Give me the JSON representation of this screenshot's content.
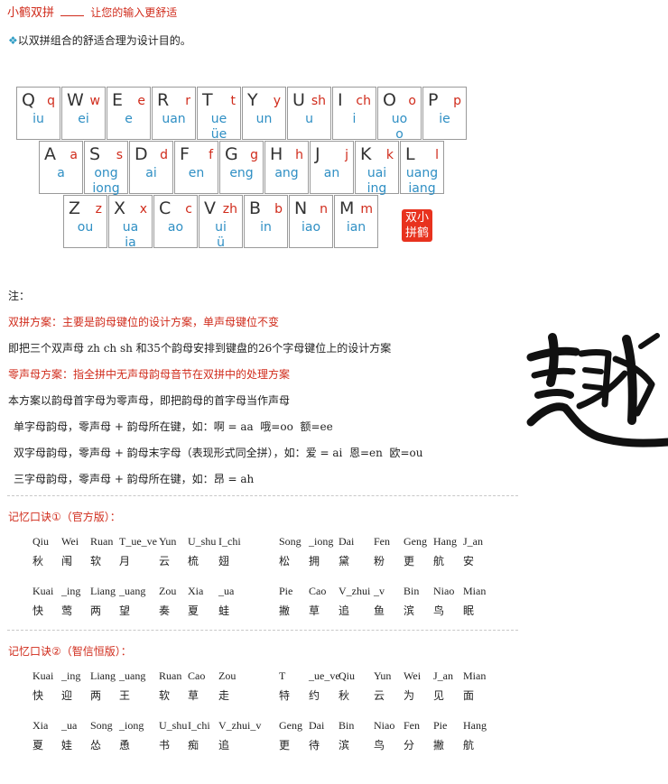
{
  "header": {
    "brand": "小鹤双拼",
    "subtitle": "让您的输入更舒适",
    "desc_marker": "❖",
    "desc": "以双拼组合的舒适合理为设计目的。"
  },
  "keyboard": {
    "rows": [
      [
        {
          "letter": "Q",
          "sheng": "q",
          "finals": [
            "iu"
          ]
        },
        {
          "letter": "W",
          "sheng": "w",
          "finals": [
            "ei"
          ]
        },
        {
          "letter": "E",
          "sheng": "e",
          "finals": [
            "e"
          ]
        },
        {
          "letter": "R",
          "sheng": "r",
          "finals": [
            "uan"
          ]
        },
        {
          "letter": "T",
          "sheng": "t",
          "finals": [
            "ue",
            "üe"
          ]
        },
        {
          "letter": "Y",
          "sheng": "y",
          "finals": [
            "un"
          ]
        },
        {
          "letter": "U",
          "sheng": "sh",
          "finals": [
            "u"
          ]
        },
        {
          "letter": "I",
          "sheng": "ch",
          "finals": [
            "i"
          ]
        },
        {
          "letter": "O",
          "sheng": "o",
          "finals": [
            "uo",
            "o"
          ]
        },
        {
          "letter": "P",
          "sheng": "p",
          "finals": [
            "ie"
          ]
        }
      ],
      [
        {
          "letter": "A",
          "sheng": "a",
          "finals": [
            "a"
          ]
        },
        {
          "letter": "S",
          "sheng": "s",
          "finals": [
            "ong",
            "iong"
          ]
        },
        {
          "letter": "D",
          "sheng": "d",
          "finals": [
            "ai"
          ]
        },
        {
          "letter": "F",
          "sheng": "f",
          "finals": [
            "en"
          ]
        },
        {
          "letter": "G",
          "sheng": "g",
          "finals": [
            "eng"
          ]
        },
        {
          "letter": "H",
          "sheng": "h",
          "finals": [
            "ang"
          ]
        },
        {
          "letter": "J",
          "sheng": "j",
          "finals": [
            "an"
          ]
        },
        {
          "letter": "K",
          "sheng": "k",
          "finals": [
            "uai",
            "ing"
          ]
        },
        {
          "letter": "L",
          "sheng": "l",
          "finals": [
            "uang",
            "iang"
          ]
        }
      ],
      [
        {
          "letter": "Z",
          "sheng": "z",
          "finals": [
            "ou"
          ]
        },
        {
          "letter": "X",
          "sheng": "x",
          "finals": [
            "ua",
            "ia"
          ]
        },
        {
          "letter": "C",
          "sheng": "c",
          "finals": [
            "ao"
          ]
        },
        {
          "letter": "V",
          "sheng": "zh",
          "finals": [
            "ui",
            "ü"
          ]
        },
        {
          "letter": "B",
          "sheng": "b",
          "finals": [
            "in"
          ]
        },
        {
          "letter": "N",
          "sheng": "n",
          "finals": [
            "iao"
          ]
        },
        {
          "letter": "M",
          "sheng": "m",
          "finals": [
            "ian"
          ]
        }
      ]
    ],
    "seal_text": "双小拼鹤"
  },
  "notes": {
    "heading": "注：",
    "shuangpin_def": "双拼方案：主要是韵母键位的设计方案，单声母键位不变",
    "scheme_line": {
      "pre": "即把三个双声母 ",
      "shengmu": "zh ch sh",
      "mid1": " 和",
      "count35": "35",
      "mid2": "个韵母安排到键盘的",
      "count26": "26",
      "post": "个字母键位上的设计方案"
    },
    "zero_def": "零声母方案：指全拼中无声母韵母音节在双拼中的处理方案",
    "zero_rule": "本方案以韵母首字母为零声母，即把韵母的首字母当作声母",
    "rule1": {
      "text": "单字母韵母，零声母 + 韵母所在键，如：",
      "examples": "啊 = aa  哦=oo  额=ee"
    },
    "rule2": {
      "text": "双字母韵母，零声母 + 韵母末字母（表现形式同全拼），如：",
      "examples": "爱 = ai  恩=en  欧=ou"
    },
    "rule3": {
      "text": "三字母韵母，零声母 + 韵母所在键，如：",
      "examples": "昂 = ah"
    },
    "calligraphy": "趣"
  },
  "mnemonic1": {
    "heading": "记忆口诀①（官方版）：",
    "groups": [
      [
        {
          "py": "Qiu",
          "hz": "秋"
        },
        {
          "py": "Wei",
          "hz": "闱"
        },
        {
          "py": "Ruan",
          "hz": "软"
        },
        {
          "py": "T_ue_ve",
          "hz": "月"
        },
        {
          "py": "Yun",
          "hz": "云"
        },
        {
          "py": "U_shu",
          "hz": "梳"
        },
        {
          "py": "I_chi",
          "hz": "翅"
        },
        {
          "py": "Song",
          "hz": "松"
        },
        {
          "py": "_iong",
          "hz": "拥"
        },
        {
          "py": "Dai",
          "hz": "黛"
        },
        {
          "py": "Fen",
          "hz": "粉"
        },
        {
          "py": "Geng",
          "hz": "更"
        },
        {
          "py": "Hang",
          "hz": "航"
        },
        {
          "py": "J_an",
          "hz": "安"
        }
      ],
      [
        {
          "py": "Kuai",
          "hz": "快"
        },
        {
          "py": "_ing",
          "hz": "莺"
        },
        {
          "py": "Liang",
          "hz": "两"
        },
        {
          "py": "_uang",
          "hz": "望"
        },
        {
          "py": "Zou",
          "hz": "奏"
        },
        {
          "py": "Xia",
          "hz": "夏"
        },
        {
          "py": "_ua",
          "hz": "蛙"
        },
        {
          "py": "Pie",
          "hz": "撇"
        },
        {
          "py": "Cao",
          "hz": "草"
        },
        {
          "py": "V_zhui",
          "hz": "追"
        },
        {
          "py": "_v",
          "hz": "鱼"
        },
        {
          "py": "Bin",
          "hz": "滨"
        },
        {
          "py": "Niao",
          "hz": "鸟"
        },
        {
          "py": "Mian",
          "hz": "眠"
        }
      ]
    ]
  },
  "mnemonic2": {
    "heading": "记忆口诀②（智信恒版）：",
    "groups": [
      [
        {
          "py": "Kuai",
          "hz": "快"
        },
        {
          "py": "_ing",
          "hz": "迎"
        },
        {
          "py": "Liang",
          "hz": "两"
        },
        {
          "py": "_uang",
          "hz": "王"
        },
        {
          "py": "Ruan",
          "hz": "软"
        },
        {
          "py": "Cao",
          "hz": "草"
        },
        {
          "py": "Zou",
          "hz": "走"
        },
        {
          "py": "T",
          "hz": "特"
        },
        {
          "py": "_ue_ve",
          "hz": "约"
        },
        {
          "py": "Qiu",
          "hz": "秋"
        },
        {
          "py": "Yun",
          "hz": "云"
        },
        {
          "py": "Wei",
          "hz": "为"
        },
        {
          "py": "J_an",
          "hz": "见"
        },
        {
          "py": "Mian",
          "hz": "面"
        }
      ],
      [
        {
          "py": "Xia",
          "hz": "夏"
        },
        {
          "py": "_ua",
          "hz": "娃"
        },
        {
          "py": "Song",
          "hz": "怂"
        },
        {
          "py": "_iong",
          "hz": "恿"
        },
        {
          "py": "U_shu",
          "hz": "书"
        },
        {
          "py": "I_chi",
          "hz": "痴"
        },
        {
          "py": "V_zhui_v",
          "hz": "追"
        },
        {
          "py": "Geng",
          "hz": "更"
        },
        {
          "py": "Dai",
          "hz": "待"
        },
        {
          "py": "Bin",
          "hz": "滨"
        },
        {
          "py": "Niao",
          "hz": "鸟"
        },
        {
          "py": "Fen",
          "hz": "分"
        },
        {
          "py": "Pie",
          "hz": "撇"
        },
        {
          "py": "Hang",
          "hz": "航"
        }
      ]
    ]
  }
}
